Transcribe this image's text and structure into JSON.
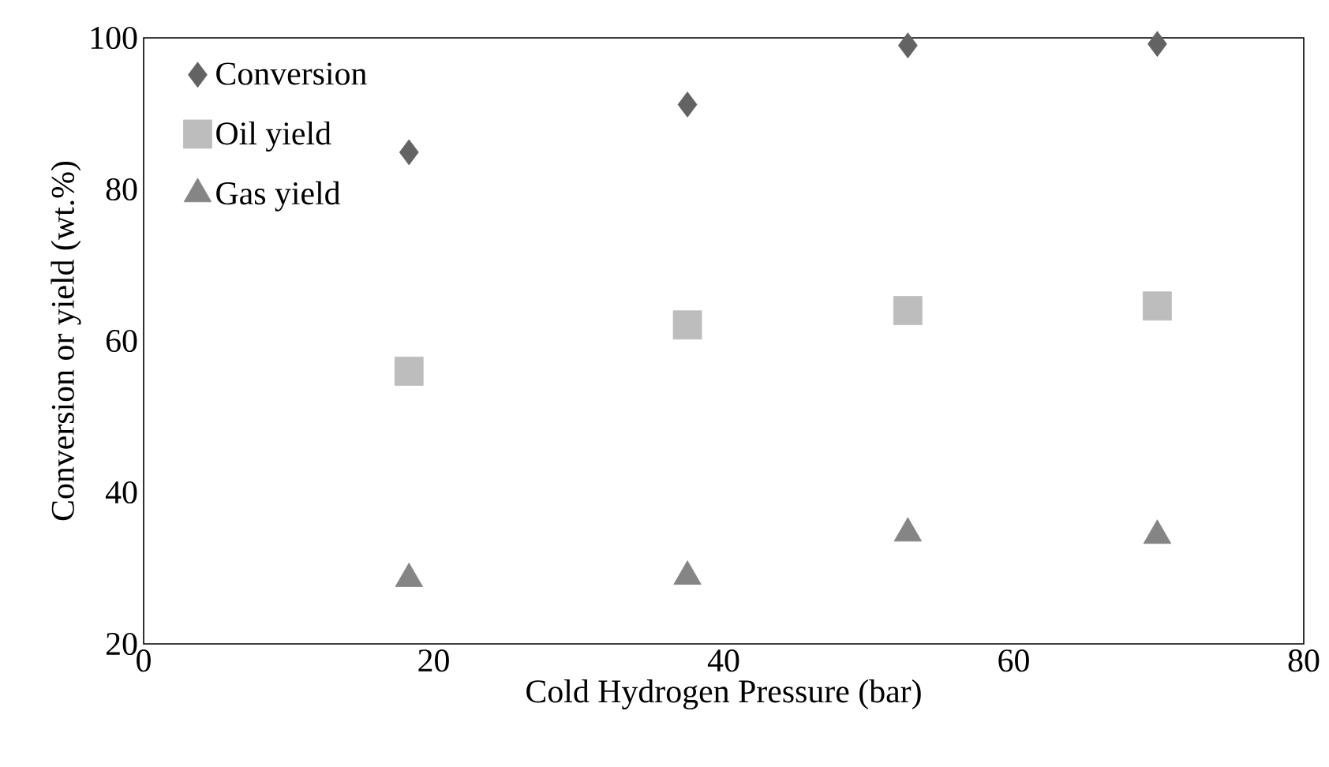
{
  "chart_data": {
    "type": "scatter",
    "xlabel": "Cold Hydrogen Pressure (bar)",
    "ylabel": "Conversion or yield (wt.%)",
    "x": [
      18.3,
      37.5,
      52.7,
      69.9
    ],
    "series": [
      {
        "name": "Conversion",
        "color": "#636363",
        "marker": "diamond",
        "values": [
          84.9,
          91.2,
          99.0,
          99.2
        ]
      },
      {
        "name": "Oil yield",
        "color": "#bdbdbd",
        "marker": "square",
        "values": [
          56.0,
          62.1,
          64.0,
          64.6
        ]
      },
      {
        "name": "Gas yield",
        "color": "#858585",
        "marker": "triangle",
        "values": [
          28.6,
          28.9,
          34.6,
          34.3
        ]
      }
    ],
    "xlim": [
      0,
      80
    ],
    "ylim": [
      20,
      100
    ],
    "xticks": [
      0,
      20,
      40,
      60,
      80
    ],
    "yticks": [
      20,
      40,
      60,
      80,
      100
    ],
    "grid": false,
    "legend": "top left"
  }
}
